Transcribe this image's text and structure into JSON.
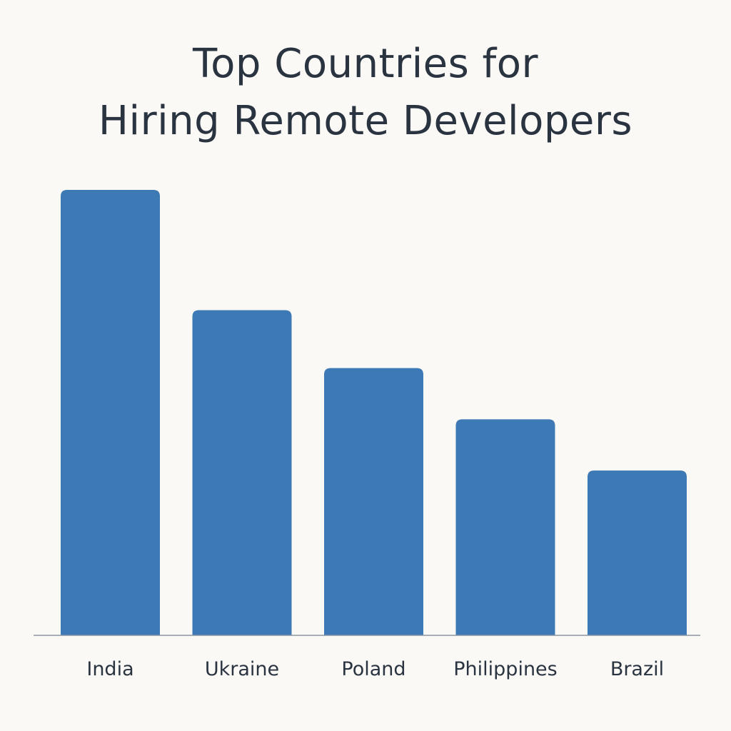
{
  "chart_data": {
    "type": "bar",
    "title_lines": [
      "Top Countries for",
      "Hiring Remote Developers"
    ],
    "categories": [
      "India",
      "Ukraine",
      "Poland",
      "Philippines",
      "Brazil"
    ],
    "values": [
      100,
      73,
      60,
      48.5,
      37
    ],
    "xlabel": "",
    "ylabel": "",
    "ylim": [
      0,
      100
    ],
    "grid": false,
    "legend": "none",
    "colors": {
      "bar": "#3d79b4",
      "axis": "#8a96a3",
      "text": "#2a3441",
      "background": "#fbf9f5"
    }
  }
}
